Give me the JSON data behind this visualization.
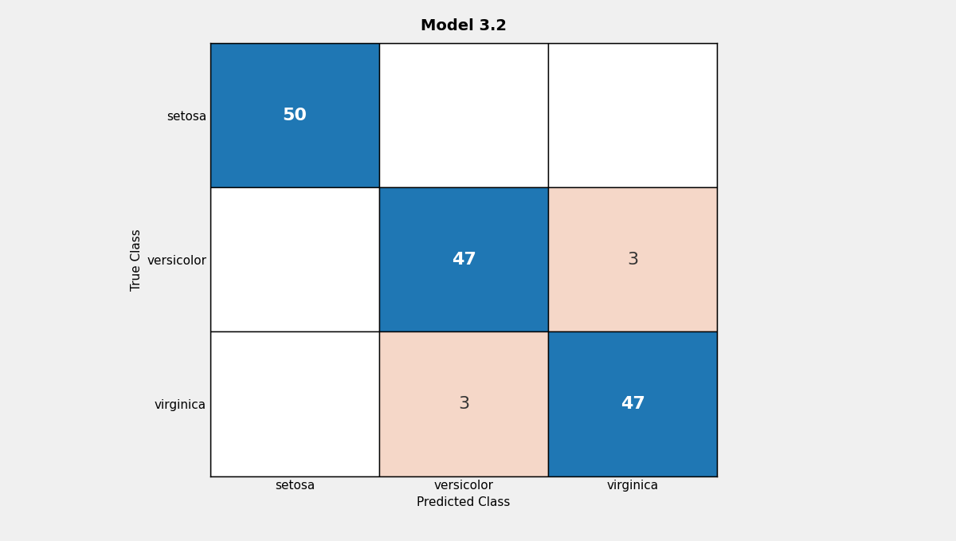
{
  "title": "Model 3.2",
  "matrix": [
    [
      50,
      0,
      0
    ],
    [
      0,
      47,
      3
    ],
    [
      0,
      3,
      47
    ]
  ],
  "classes": [
    "setosa",
    "versicolor",
    "virginica"
  ],
  "xlabel": "Predicted Class",
  "ylabel": "True Class",
  "diagonal_color": "#1F77B4",
  "off_diagonal_nonzero_color": "#F5D7C8",
  "off_diagonal_zero_color": "#FFFFFF",
  "diagonal_text_color": "#FFFFFF",
  "off_diagonal_text_color": "#333333",
  "grid_color": "#000000",
  "background_color": "#F0F0F0",
  "title_fontsize": 14,
  "label_fontsize": 11,
  "tick_fontsize": 11,
  "value_fontsize": 16
}
